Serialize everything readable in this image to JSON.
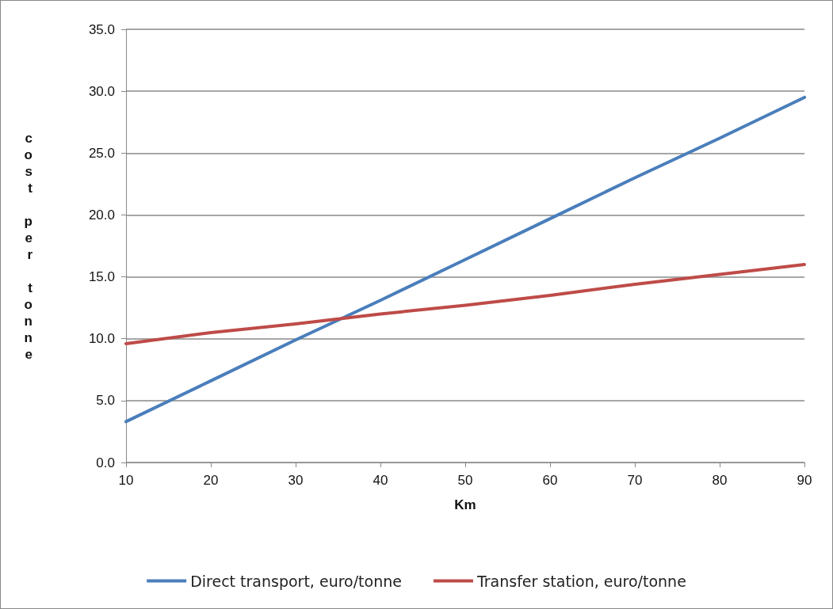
{
  "chart_data": {
    "type": "line",
    "xlabel": "Km",
    "ylabel": "cost per tonne",
    "x": [
      10,
      20,
      30,
      40,
      50,
      60,
      70,
      80,
      90
    ],
    "series": [
      {
        "name": "Direct transport, euro/tonne",
        "color": "#4a7ebb",
        "values": [
          3.3,
          6.6,
          9.9,
          13.1,
          16.4,
          19.7,
          23.0,
          26.2,
          29.5
        ]
      },
      {
        "name": "Transfer station, euro/tonne",
        "color": "#be4b48",
        "values": [
          9.6,
          10.5,
          11.2,
          12.0,
          12.7,
          13.5,
          14.4,
          15.2,
          16.0
        ]
      }
    ],
    "xlim": [
      10,
      90
    ],
    "xticks": [
      10,
      20,
      30,
      40,
      50,
      60,
      70,
      80,
      90
    ],
    "ylim": [
      0,
      35
    ],
    "yticks": [
      {
        "value": 0,
        "label": "0.0"
      },
      {
        "value": 5,
        "label": "5.0"
      },
      {
        "value": 10,
        "label": "10.0"
      },
      {
        "value": 15,
        "label": "15.0"
      },
      {
        "value": 20,
        "label": "20.0"
      },
      {
        "value": 25,
        "label": "25.0"
      },
      {
        "value": 30,
        "label": "30.0"
      },
      {
        "value": 35,
        "label": "35.0"
      }
    ],
    "grid": "y",
    "legend": "bottom",
    "marker": "none",
    "line_style": "solid"
  }
}
